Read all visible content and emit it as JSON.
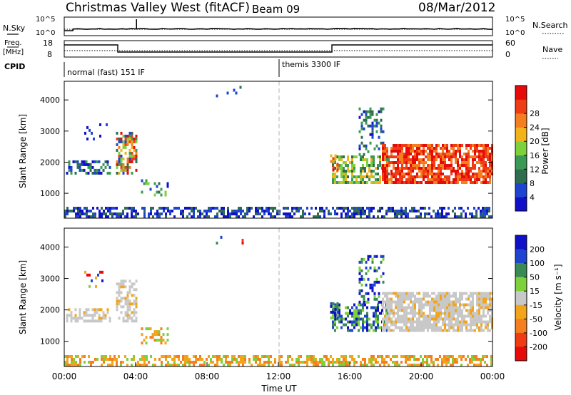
{
  "header": {
    "station": "Christmas Valley West (fitACF)",
    "beam": "Beam 09",
    "date": "08/Mar/2012"
  },
  "top_panels": {
    "nsky_label": "N.Sky",
    "nsearch_label": "N.Search",
    "noise_ticks_left": [
      "10^5",
      "10^0"
    ],
    "noise_ticks_right": [
      "10^5",
      "10^0"
    ],
    "freq_label_1": "Freq.",
    "freq_label_2": "[MHz]",
    "freq_ticks": [
      "18",
      "8"
    ],
    "nave_label": "Nave",
    "nave_ticks": [
      "60",
      "0"
    ],
    "cpid_label": "CPID",
    "cpid_segments": [
      {
        "text": "normal (fast) 151 IF",
        "start_hour": 0
      },
      {
        "text": "themis 3300 IF",
        "start_hour": 12
      }
    ]
  },
  "colors": {
    "power": [
      "#1010c8",
      "#1e44d0",
      "#2e6e4e",
      "#3a9a55",
      "#7fd13b",
      "#f2b21a",
      "#f57e1e",
      "#f03c14",
      "#e60a0a"
    ],
    "velocity": [
      "#1010c8",
      "#1e44d0",
      "#3a8a55",
      "#7fd13b",
      "#c8c8c8",
      "#f2a51a",
      "#f57e1e",
      "#f03c14",
      "#e60a0a"
    ],
    "ground": "#c8c8c8"
  },
  "chart_data": [
    {
      "type": "heatmap",
      "name": "power",
      "ylabel": "Slant Range [km]",
      "yticks": [
        1000,
        2000,
        3000,
        4000
      ],
      "ylim": [
        200,
        4600
      ],
      "xlim": [
        0,
        24
      ],
      "colorbar_label": "Power [dB]",
      "colorbar_ticks": [
        "4",
        "8",
        "12",
        "16",
        "20",
        "24",
        "28"
      ],
      "colorbar_range": [
        0,
        32
      ]
    },
    {
      "type": "heatmap",
      "name": "velocity",
      "ylabel": "Slant Range [km]",
      "yticks": [
        1000,
        2000,
        3000,
        4000
      ],
      "ylim": [
        200,
        4600
      ],
      "xlim": [
        0,
        24
      ],
      "colorbar_label": "Velocity [m s⁻¹]",
      "colorbar_ticks": [
        "-200",
        "-100",
        "-50",
        "-15",
        "15",
        "50",
        "100",
        "200"
      ]
    }
  ],
  "xaxis": {
    "ticks": [
      "00:00",
      "04:00",
      "08:00",
      "12:00",
      "16:00",
      "20:00",
      "00:00"
    ],
    "label": "Time UT"
  }
}
